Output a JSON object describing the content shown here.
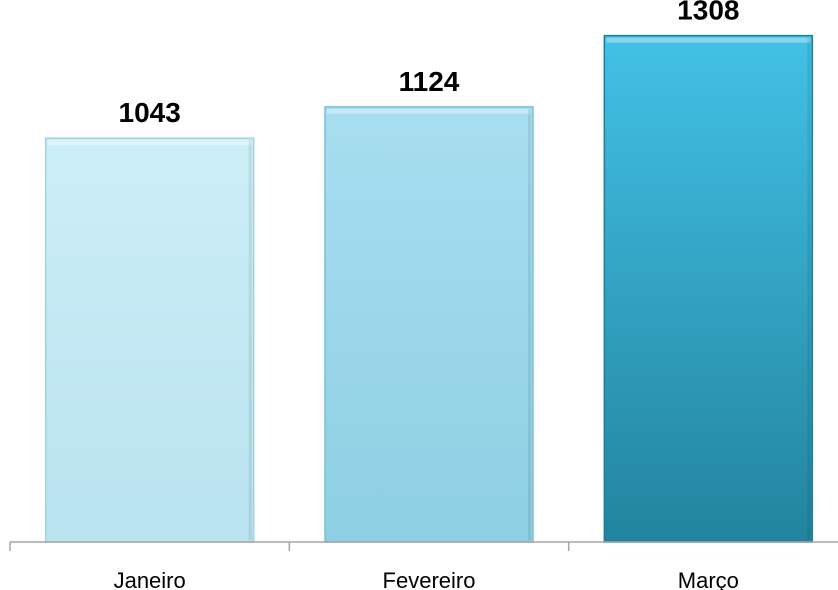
{
  "chart_data": {
    "type": "bar",
    "categories": [
      "Janeiro",
      "Fevereiro",
      "Março"
    ],
    "values": [
      1043,
      1124,
      1308
    ],
    "title": "",
    "xlabel": "",
    "ylabel": "",
    "ylim": [
      0,
      1400
    ],
    "grid": false,
    "legend": "none",
    "colors": [
      {
        "top": "#cdeef7",
        "bottom": "#b8e3ef",
        "edge": "#9fd3e3"
      },
      {
        "top": "#a7def0",
        "bottom": "#8ecfe3",
        "edge": "#7cc1d6"
      },
      {
        "top": "#42c1e6",
        "bottom": "#22849e",
        "edge": "#1c7f9a"
      }
    ],
    "axis_color": "#a6a6a6"
  }
}
